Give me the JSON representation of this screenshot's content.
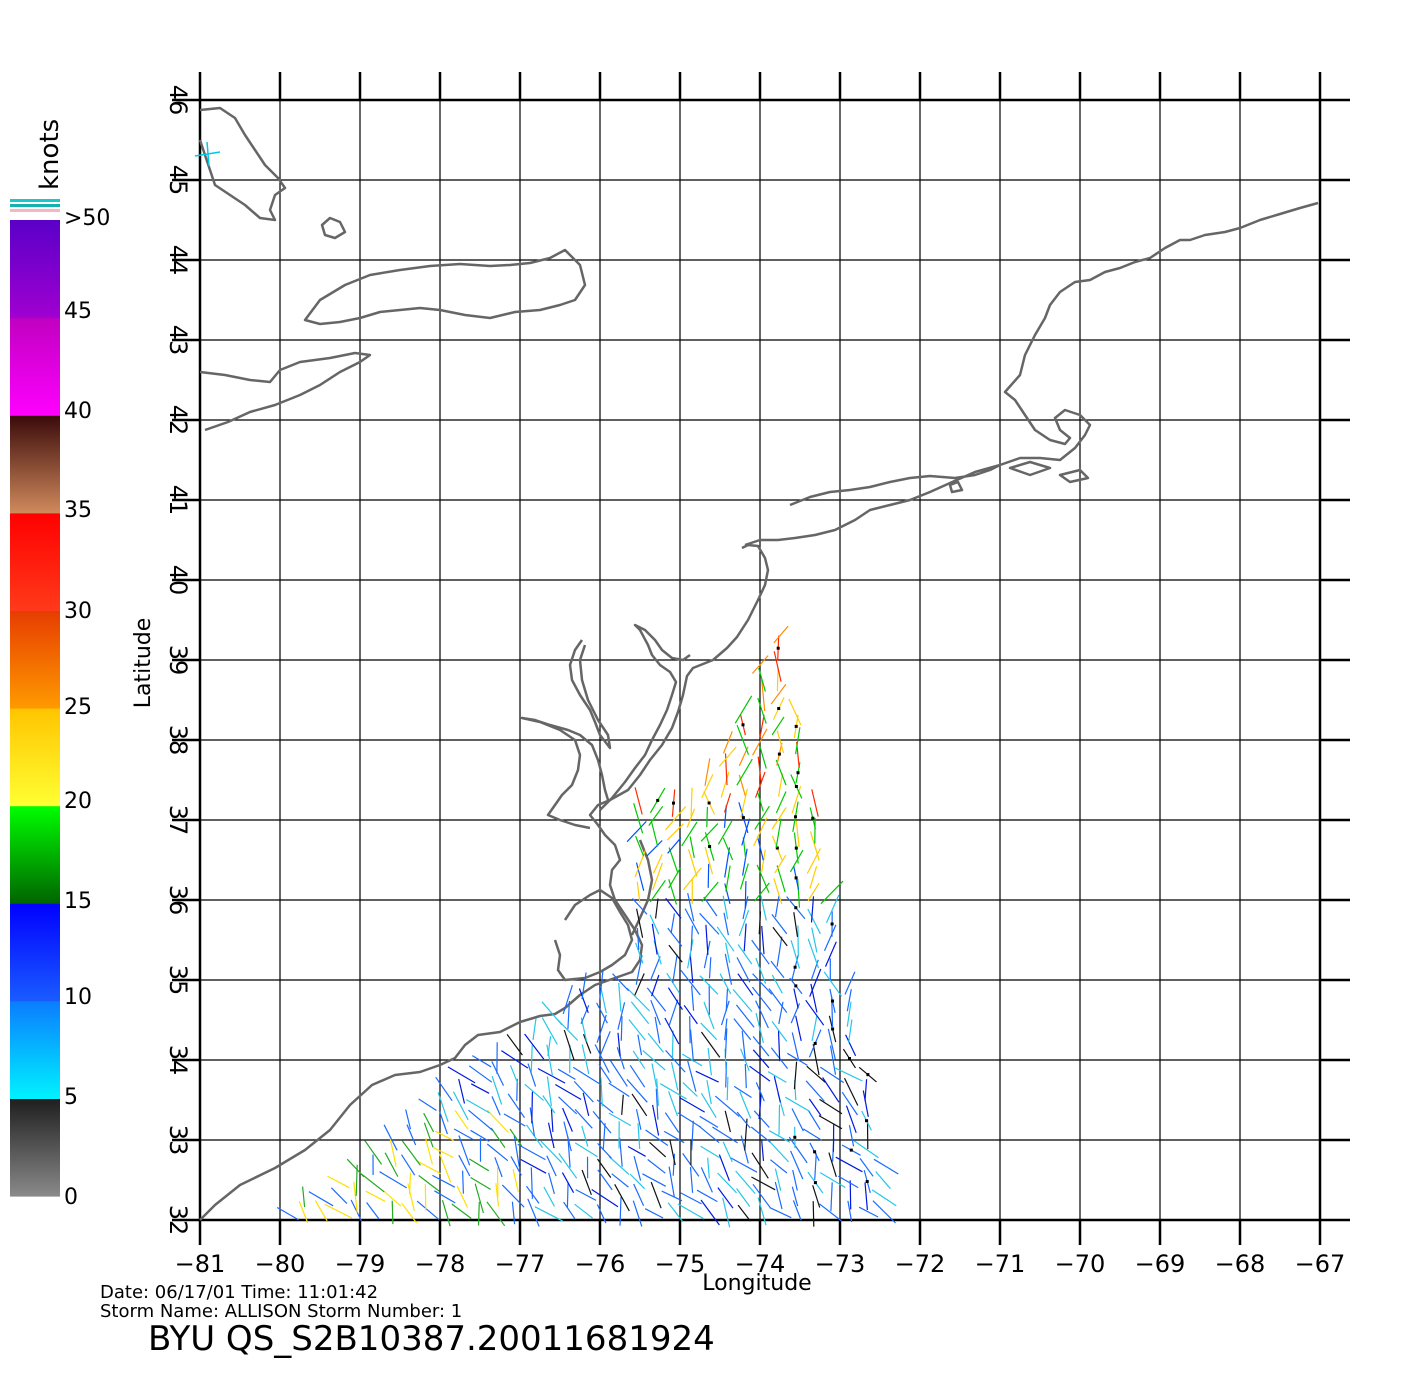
{
  "map": {
    "x_axis_label": "Longitude",
    "y_axis_label": "Latitude",
    "lon_ticks": [
      "−81",
      "−80",
      "−79",
      "−78",
      "−77",
      "−76",
      "−75",
      "−74",
      "−73",
      "−72",
      "−71",
      "−70",
      "−69",
      "−68",
      "−67"
    ],
    "lat_ticks": [
      "32",
      "33",
      "34",
      "35",
      "36",
      "37",
      "38",
      "39",
      "40",
      "41",
      "42",
      "43",
      "44",
      "45",
      "46"
    ],
    "lon_range": [
      -81,
      -67
    ],
    "lat_range": [
      32,
      46
    ],
    "grid": true,
    "coastline_color": "#666666"
  },
  "legend": {
    "unit_label": "knots",
    "labels": [
      ">50",
      "45",
      "40",
      "35",
      "30",
      "25",
      "20",
      "15",
      "10",
      "5",
      "0"
    ],
    "color_bands": [
      {
        "from": 0,
        "to": 5,
        "top": "#1e1e1e",
        "bottom": "#8a8a8a"
      },
      {
        "from": 5,
        "to": 10,
        "top": "#0a7cff",
        "bottom": "#00f2ff"
      },
      {
        "from": 10,
        "to": 15,
        "top": "#0000ff",
        "bottom": "#1a5cff"
      },
      {
        "from": 15,
        "to": 20,
        "top": "#00ff00",
        "bottom": "#006400"
      },
      {
        "from": 20,
        "to": 25,
        "top": "#ffc400",
        "bottom": "#ffff33"
      },
      {
        "from": 25,
        "to": 30,
        "top": "#e63c00",
        "bottom": "#ff9a00"
      },
      {
        "from": 30,
        "to": 35,
        "top": "#ff0000",
        "bottom": "#ff3a1a"
      },
      {
        "from": 35,
        "to": 40,
        "top": "#3a0a0a",
        "bottom": "#d08a5c"
      },
      {
        "from": 40,
        "to": 45,
        "top": "#c000c0",
        "bottom": "#ff00ff"
      },
      {
        "from": 45,
        "to": 50,
        "top": "#5a00c8",
        "bottom": "#a000d0"
      }
    ]
  },
  "footer": {
    "date_line": "Date:  06/17/01    Time:  11:01:42",
    "storm_line": "Storm  Name:  ALLISON    Storm  Number:  1",
    "product_id": "BYU  QS_S2B10387.20011681924"
  }
}
